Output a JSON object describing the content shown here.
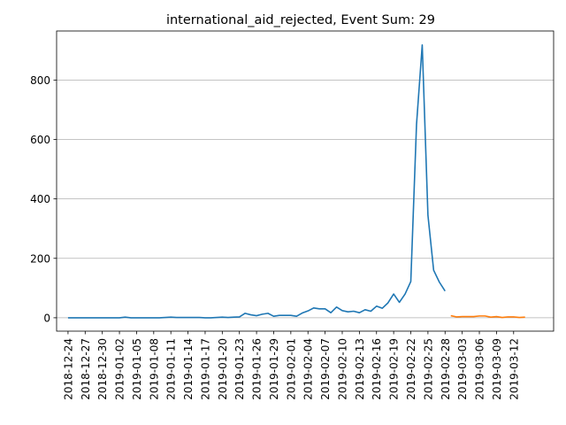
{
  "chart_data": {
    "type": "line",
    "title": "international_aid_rejected, Event Sum: 29",
    "xlabel": "",
    "ylabel": "",
    "grid": "horizontal",
    "x_axis_type": "date",
    "xlim": [
      "2018-12-22",
      "2019-03-19"
    ],
    "ylim": [
      -45,
      965
    ],
    "x_ticks": [
      "2018-12-24",
      "2018-12-27",
      "2018-12-30",
      "2019-01-02",
      "2019-01-05",
      "2019-01-08",
      "2019-01-11",
      "2019-01-14",
      "2019-01-17",
      "2019-01-20",
      "2019-01-23",
      "2019-01-26",
      "2019-01-29",
      "2019-02-01",
      "2019-02-04",
      "2019-02-07",
      "2019-02-10",
      "2019-02-13",
      "2019-02-16",
      "2019-02-19",
      "2019-02-22",
      "2019-02-25",
      "2019-02-28",
      "2019-03-03",
      "2019-03-06",
      "2019-03-09",
      "2019-03-12"
    ],
    "y_ticks": [
      0,
      200,
      400,
      600,
      800
    ],
    "series": [
      {
        "color": "#1f77b4",
        "points": [
          [
            "2018-12-24",
            0
          ],
          [
            "2018-12-25",
            0
          ],
          [
            "2018-12-26",
            0
          ],
          [
            "2018-12-27",
            0
          ],
          [
            "2018-12-28",
            0
          ],
          [
            "2018-12-29",
            0
          ],
          [
            "2018-12-30",
            0
          ],
          [
            "2018-12-31",
            0
          ],
          [
            "2019-01-01",
            0
          ],
          [
            "2019-01-02",
            0
          ],
          [
            "2019-01-03",
            2
          ],
          [
            "2019-01-04",
            0
          ],
          [
            "2019-01-05",
            0
          ],
          [
            "2019-01-06",
            0
          ],
          [
            "2019-01-07",
            0
          ],
          [
            "2019-01-08",
            0
          ],
          [
            "2019-01-09",
            0
          ],
          [
            "2019-01-10",
            1
          ],
          [
            "2019-01-11",
            2
          ],
          [
            "2019-01-12",
            1
          ],
          [
            "2019-01-13",
            1
          ],
          [
            "2019-01-14",
            1
          ],
          [
            "2019-01-15",
            1
          ],
          [
            "2019-01-16",
            1
          ],
          [
            "2019-01-17",
            0
          ],
          [
            "2019-01-18",
            0
          ],
          [
            "2019-01-19",
            1
          ],
          [
            "2019-01-20",
            2
          ],
          [
            "2019-01-21",
            1
          ],
          [
            "2019-01-22",
            2
          ],
          [
            "2019-01-23",
            3
          ],
          [
            "2019-01-24",
            15
          ],
          [
            "2019-01-25",
            10
          ],
          [
            "2019-01-26",
            7
          ],
          [
            "2019-01-27",
            12
          ],
          [
            "2019-01-28",
            15
          ],
          [
            "2019-01-29",
            5
          ],
          [
            "2019-01-30",
            8
          ],
          [
            "2019-01-31",
            8
          ],
          [
            "2019-02-01",
            8
          ],
          [
            "2019-02-02",
            5
          ],
          [
            "2019-02-03",
            16
          ],
          [
            "2019-02-04",
            23
          ],
          [
            "2019-02-05",
            33
          ],
          [
            "2019-02-06",
            30
          ],
          [
            "2019-02-07",
            30
          ],
          [
            "2019-02-08",
            17
          ],
          [
            "2019-02-09",
            36
          ],
          [
            "2019-02-10",
            24
          ],
          [
            "2019-02-11",
            20
          ],
          [
            "2019-02-12",
            22
          ],
          [
            "2019-02-13",
            17
          ],
          [
            "2019-02-14",
            27
          ],
          [
            "2019-02-15",
            22
          ],
          [
            "2019-02-16",
            39
          ],
          [
            "2019-02-17",
            32
          ],
          [
            "2019-02-18",
            50
          ],
          [
            "2019-02-19",
            80
          ],
          [
            "2019-02-20",
            52
          ],
          [
            "2019-02-21",
            80
          ],
          [
            "2019-02-22",
            122
          ],
          [
            "2019-02-23",
            650
          ],
          [
            "2019-02-24",
            918
          ],
          [
            "2019-02-25",
            345
          ],
          [
            "2019-02-26",
            160
          ],
          [
            "2019-02-27",
            120
          ],
          [
            "2019-02-28",
            90
          ]
        ]
      },
      {
        "color": "#ff7f0e",
        "points": [
          [
            "2019-03-01",
            7
          ],
          [
            "2019-03-02",
            3
          ],
          [
            "2019-03-03",
            4
          ],
          [
            "2019-03-04",
            4
          ],
          [
            "2019-03-05",
            4
          ],
          [
            "2019-03-06",
            6
          ],
          [
            "2019-03-07",
            6
          ],
          [
            "2019-03-08",
            2
          ],
          [
            "2019-03-09",
            4
          ],
          [
            "2019-03-10",
            1
          ],
          [
            "2019-03-11",
            3
          ],
          [
            "2019-03-12",
            3
          ],
          [
            "2019-03-13",
            1
          ],
          [
            "2019-03-14",
            2
          ]
        ]
      }
    ]
  }
}
